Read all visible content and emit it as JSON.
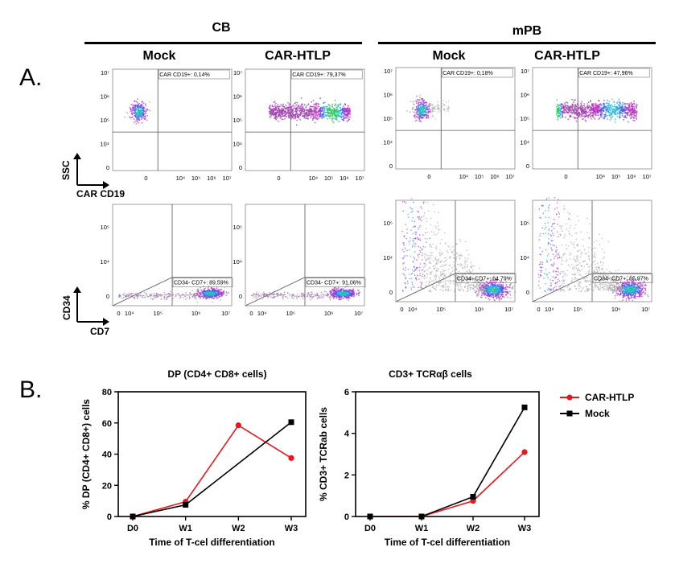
{
  "panel_labels": {
    "a": "A.",
    "b": "B."
  },
  "groups": [
    {
      "title": "CB"
    },
    {
      "title": "mPB"
    }
  ],
  "conditions": [
    "Mock",
    "CAR-HTLP",
    "Mock",
    "CAR-HTLP"
  ],
  "facs_top": {
    "gates": [
      "CAR CD19+: 0,14%",
      "CAR CD19+: 79,37%",
      "CAR CD19+: 0,18%",
      "CAR CD19+: 47,96%"
    ],
    "x_ticks": [
      "0",
      "10⁴",
      "10⁵",
      "10⁶",
      "10⁷"
    ],
    "y_ticks": [
      "10⁷",
      "10⁶",
      "10⁵",
      "10⁴",
      "0"
    ],
    "y_axis": "SSC",
    "x_axis": "CAR CD19"
  },
  "facs_bottom": {
    "gates": [
      "CD34- CD7+: 89,59%",
      "CD34- CD7+: 91,06%",
      "CD34- CD7+: 64,79%",
      "CD34- CD7+: 65,97%"
    ],
    "x_ticks": [
      "0",
      "10⁴",
      "10⁵",
      "10⁶",
      "10⁷"
    ],
    "y_ticks": [
      "10⁵",
      "10⁴",
      "0"
    ],
    "y_axis": "CD34",
    "x_axis": "CD7"
  },
  "colors": {
    "car": "#e8171f",
    "mock": "#000000"
  },
  "legend": [
    "CAR-HTLP",
    "Mock"
  ],
  "chart_data": [
    {
      "type": "line",
      "title": "DP (CD4+ CD8+ cells)",
      "xlabel": "Time of T-cel differentiation",
      "ylabel": "% DP (CD4+ CD8+) cells",
      "categories": [
        "D0",
        "W1",
        "W2",
        "W3"
      ],
      "ylim": [
        0,
        80
      ],
      "yticks": [
        "0",
        "20",
        "40",
        "60",
        "80"
      ],
      "series": [
        {
          "name": "CAR-HTLP",
          "values": [
            0,
            9.5,
            58.5,
            37.5
          ]
        },
        {
          "name": "Mock",
          "values": [
            0,
            7.5,
            null,
            60.5
          ]
        }
      ]
    },
    {
      "type": "line",
      "title": "CD3+ TCRαβ cells",
      "xlabel": "Time of T-cel differentiation",
      "ylabel": "% CD3+ TCRab cells",
      "categories": [
        "D0",
        "W1",
        "W2",
        "W3"
      ],
      "ylim": [
        0,
        6
      ],
      "yticks": [
        "0",
        "2",
        "4",
        "6"
      ],
      "series": [
        {
          "name": "CAR-HTLP",
          "values": [
            0,
            0,
            0.75,
            3.1
          ]
        },
        {
          "name": "Mock",
          "values": [
            0,
            0,
            0.95,
            5.25
          ]
        }
      ]
    }
  ]
}
